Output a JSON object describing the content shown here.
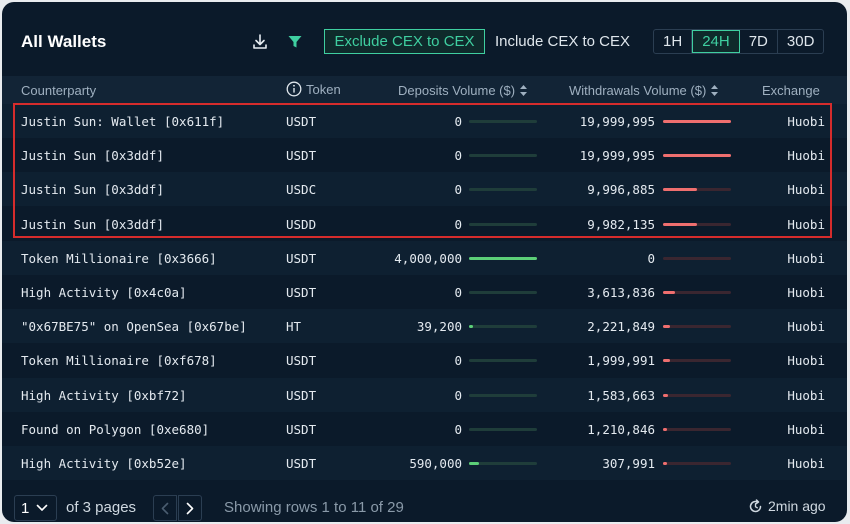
{
  "header": {
    "title": "All Wallets",
    "icons": [
      "download-icon",
      "filter-icon"
    ],
    "cex_options": [
      {
        "label": "Exclude CEX to CEX",
        "active": true
      },
      {
        "label": "Include CEX to CEX",
        "active": false
      }
    ],
    "time_ranges": [
      {
        "label": "1H",
        "active": false
      },
      {
        "label": "24H",
        "active": true
      },
      {
        "label": "7D",
        "active": false
      },
      {
        "label": "30D",
        "active": false
      }
    ]
  },
  "table": {
    "columns": {
      "counterparty": "Counterparty",
      "token": "Token",
      "deposits": "Deposits Volume ($)",
      "withdrawals": "Withdrawals Volume ($)",
      "exchange": "Exchange"
    },
    "rows": [
      {
        "counterparty": "Justin Sun: Wallet [0x611f]",
        "token": "USDT",
        "deposits": "0",
        "deposit_frac": 0,
        "withdrawals": "19,999,995",
        "withdraw_frac": 1.0,
        "exchange": "Huobi"
      },
      {
        "counterparty": "Justin Sun [0x3ddf]",
        "token": "USDT",
        "deposits": "0",
        "deposit_frac": 0,
        "withdrawals": "19,999,995",
        "withdraw_frac": 1.0,
        "exchange": "Huobi"
      },
      {
        "counterparty": "Justin Sun [0x3ddf]",
        "token": "USDC",
        "deposits": "0",
        "deposit_frac": 0,
        "withdrawals": "9,996,885",
        "withdraw_frac": 0.5,
        "exchange": "Huobi"
      },
      {
        "counterparty": "Justin Sun [0x3ddf]",
        "token": "USDD",
        "deposits": "0",
        "deposit_frac": 0,
        "withdrawals": "9,982,135",
        "withdraw_frac": 0.5,
        "exchange": "Huobi"
      },
      {
        "counterparty": "Token Millionaire [0x3666]",
        "token": "USDT",
        "deposits": "4,000,000",
        "deposit_frac": 1.0,
        "withdrawals": "0",
        "withdraw_frac": 0,
        "exchange": "Huobi"
      },
      {
        "counterparty": "High Activity [0x4c0a]",
        "token": "USDT",
        "deposits": "0",
        "deposit_frac": 0,
        "withdrawals": "3,613,836",
        "withdraw_frac": 0.18,
        "exchange": "Huobi"
      },
      {
        "counterparty": "\"0x67BE75\" on OpenSea [0x67be]",
        "token": "HT",
        "deposits": "39,200",
        "deposit_frac": 0.01,
        "withdrawals": "2,221,849",
        "withdraw_frac": 0.11,
        "exchange": "Huobi"
      },
      {
        "counterparty": "Token Millionaire [0xf678]",
        "token": "USDT",
        "deposits": "0",
        "deposit_frac": 0,
        "withdrawals": "1,999,991",
        "withdraw_frac": 0.1,
        "exchange": "Huobi"
      },
      {
        "counterparty": "High Activity [0xbf72]",
        "token": "USDT",
        "deposits": "0",
        "deposit_frac": 0,
        "withdrawals": "1,583,663",
        "withdraw_frac": 0.08,
        "exchange": "Huobi"
      },
      {
        "counterparty": "Found on Polygon [0xe680]",
        "token": "USDT",
        "deposits": "0",
        "deposit_frac": 0,
        "withdrawals": "1,210,846",
        "withdraw_frac": 0.06,
        "exchange": "Huobi"
      },
      {
        "counterparty": "High Activity [0xb52e]",
        "token": "USDT",
        "deposits": "590,000",
        "deposit_frac": 0.15,
        "withdrawals": "307,991",
        "withdraw_frac": 0.02,
        "exchange": "Huobi"
      }
    ]
  },
  "footer": {
    "page": "1",
    "of_pages": "of 3 pages",
    "showing": "Showing rows 1 to 11 of 29",
    "updated": "2min ago"
  },
  "colors": {
    "accent": "#3fcfa0",
    "deposit_bar": "#5ccf78",
    "withdraw_bar": "#ef6f6f",
    "highlight": "#d62c2c"
  }
}
